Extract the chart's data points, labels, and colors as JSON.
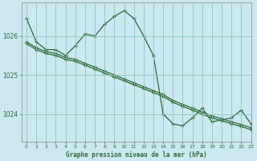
{
  "title": "Graphe pression niveau de la mer (hPa)",
  "background_color": "#cce8f0",
  "plot_bg_color": "#cce8f0",
  "grid_color": "#88ccbb",
  "line_color": "#2d6a38",
  "xlim": [
    -0.5,
    23
  ],
  "ylim": [
    1023.3,
    1026.85
  ],
  "yticks": [
    1024,
    1025,
    1026
  ],
  "xtick_labels": [
    "0",
    "1",
    "2",
    "3",
    "4",
    "5",
    "6",
    "7",
    "8",
    "9",
    "10",
    "11",
    "12",
    "13",
    "14",
    "15",
    "16",
    "17",
    "18",
    "19",
    "20",
    "21",
    "22",
    "23"
  ],
  "series": [
    {
      "x": [
        0,
        1,
        2,
        3,
        4,
        5,
        6,
        7,
        8,
        9,
        10,
        11,
        12,
        13,
        14,
        15,
        16,
        17,
        18,
        19,
        20,
        21,
        22,
        23
      ],
      "y": [
        1026.45,
        1025.85,
        1025.65,
        1025.65,
        1025.5,
        1025.75,
        1026.05,
        1026.0,
        1026.3,
        1026.5,
        1026.65,
        1026.45,
        1026.0,
        1025.5,
        1024.0,
        1023.75,
        1023.7,
        1023.9,
        1024.15,
        1023.8,
        1023.85,
        1023.9,
        1024.1,
        1023.75
      ]
    },
    {
      "x": [
        0,
        1,
        2,
        3,
        4,
        5,
        6,
        7,
        8,
        9,
        10,
        11,
        12,
        13,
        14,
        15,
        16,
        17,
        18,
        19,
        20,
        21,
        22,
        23
      ],
      "y": [
        1025.85,
        1025.7,
        1025.6,
        1025.55,
        1025.45,
        1025.4,
        1025.3,
        1025.2,
        1025.1,
        1025.0,
        1024.9,
        1024.8,
        1024.7,
        1024.6,
        1024.5,
        1024.35,
        1024.25,
        1024.15,
        1024.05,
        1023.95,
        1023.88,
        1023.8,
        1023.73,
        1023.65
      ]
    },
    {
      "x": [
        0,
        1,
        2,
        3,
        4,
        5,
        6,
        7,
        8,
        9,
        10,
        11,
        12,
        13,
        14,
        15,
        16,
        17,
        18,
        19,
        20,
        21,
        22,
        23
      ],
      "y": [
        1025.8,
        1025.65,
        1025.55,
        1025.5,
        1025.4,
        1025.35,
        1025.25,
        1025.15,
        1025.05,
        1024.95,
        1024.85,
        1024.75,
        1024.65,
        1024.55,
        1024.45,
        1024.3,
        1024.2,
        1024.1,
        1024.0,
        1023.9,
        1023.83,
        1023.75,
        1023.68,
        1023.6
      ]
    }
  ]
}
